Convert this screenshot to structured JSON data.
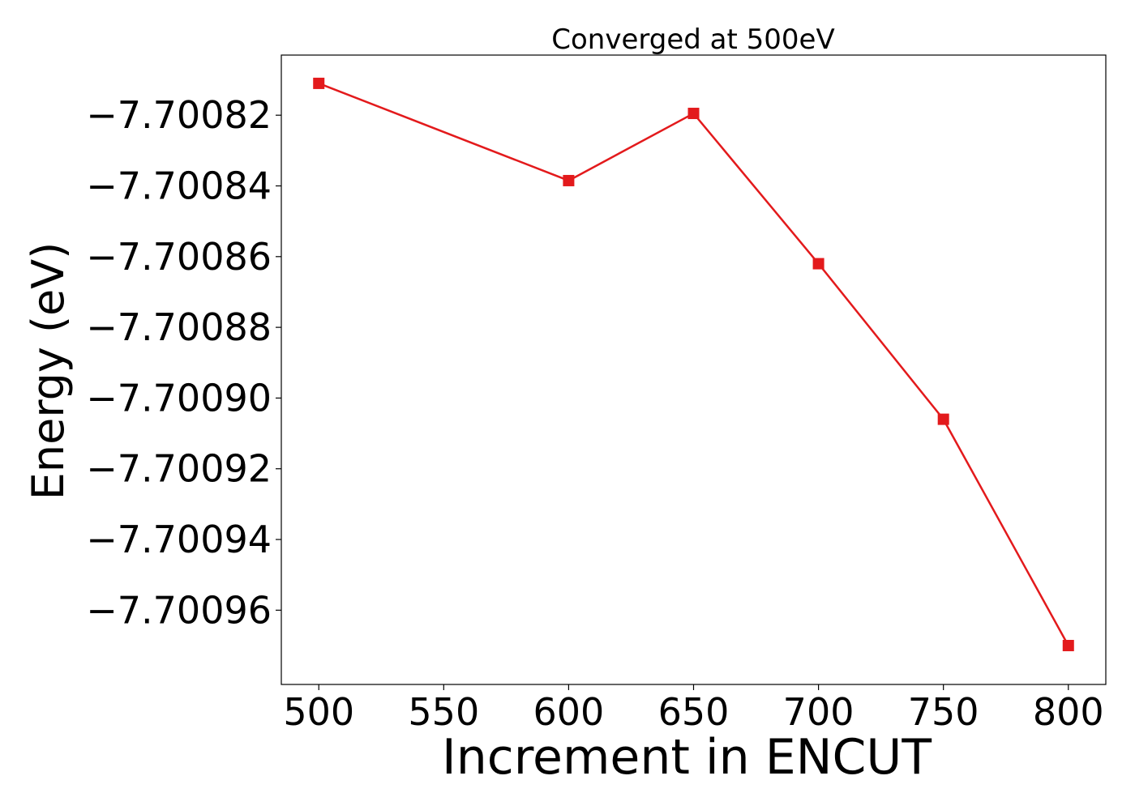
{
  "chart_data": {
    "type": "line",
    "title": "Converged at 500eV",
    "xlabel": "Increment in ENCUT",
    "ylabel": "Energy (eV)",
    "xlim": [
      485,
      815
    ],
    "ylim": [
      -7.700981,
      -7.700803
    ],
    "xticks": [
      500,
      550,
      600,
      650,
      700,
      750,
      800
    ],
    "xtick_labels": [
      "500",
      "550",
      "600",
      "650",
      "700",
      "750",
      "800"
    ],
    "yticks": [
      -7.70082,
      -7.70084,
      -7.70086,
      -7.70088,
      -7.7009,
      -7.70092,
      -7.70094,
      -7.70096
    ],
    "ytick_labels": [
      "−7.70082",
      "−7.70084",
      "−7.70086",
      "−7.70088",
      "−7.70090",
      "−7.70092",
      "−7.70094",
      "−7.70096"
    ],
    "grid": false,
    "series": [
      {
        "color": "#e31a1c",
        "marker": "square",
        "x": [
          500,
          600,
          650,
          700,
          750,
          800
        ],
        "y": [
          -7.700811,
          -7.7008385,
          -7.7008195,
          -7.700862,
          -7.700906,
          -7.70097
        ]
      }
    ]
  }
}
